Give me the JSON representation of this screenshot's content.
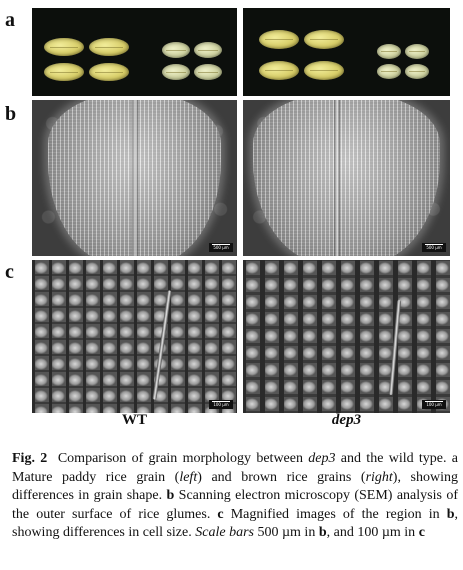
{
  "panels": {
    "a": {
      "letter": "a"
    },
    "b": {
      "letter": "b",
      "scale_left": "500 µm",
      "scale_right": "500 µm"
    },
    "c": {
      "letter": "c",
      "scale_left": "100 µm",
      "scale_right": "100 µm"
    }
  },
  "columns": {
    "left": "WT",
    "right": "dep3"
  },
  "caption": {
    "label": "Fig. 2",
    "s1": "Comparison of grain morphology between ",
    "gene1": "dep3",
    "s2": " and the wild type. a Mature paddy rice grain (",
    "left": "left",
    "s3": ") and brown rice grains (",
    "right": "right",
    "s4": "), showing differences in grain shape. ",
    "b_label": "b",
    "s5": " Scanning electron microscopy (SEM) analysis of the outer surface of rice glumes. ",
    "c_label": "c",
    "s6": " Magnified images of the region in ",
    "b_ref": "b",
    "s7": ", showing differences in cell size. ",
    "scale_label": "Scale bars",
    "s8": " 500 µm in ",
    "b_ref2": "b",
    "s9": ", and 100 µm in ",
    "c_ref": "c"
  }
}
